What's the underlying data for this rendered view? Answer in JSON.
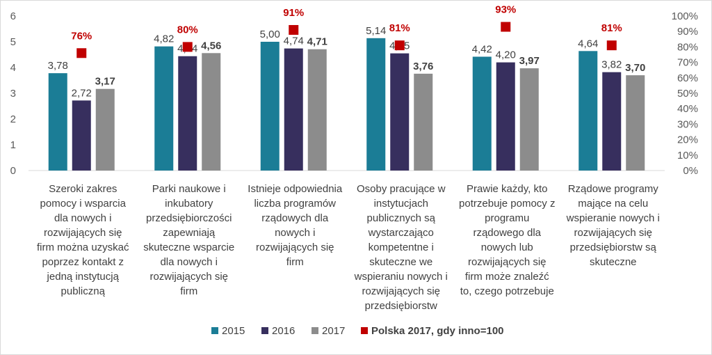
{
  "chart_data": {
    "type": "bar",
    "categories": [
      [
        "Szeroki zakres",
        "pomocy i wsparcia",
        "dla nowych i",
        "rozwijających się",
        "firm można uzyskać",
        "poprzez kontakt z",
        "jedną instytucją",
        "publiczną"
      ],
      [
        "Parki naukowe i",
        "inkubatory",
        "przedsiębiorczości",
        "zapewniają",
        "skuteczne wsparcie",
        "dla nowych i",
        "rozwijających się",
        "firm"
      ],
      [
        "Istnieje odpowiednia",
        "liczba programów",
        "rządowych dla",
        "nowych i",
        "rozwijających się",
        "firm"
      ],
      [
        "Osoby pracujące w",
        "instytucjach",
        "publicznych są",
        "wystarczająco",
        "kompetentne i",
        "skuteczne we",
        "wspieraniu nowych i",
        "rozwijających się",
        "przedsiębiorstw"
      ],
      [
        "Prawie każdy, kto",
        "potrzebuje pomocy z",
        "programu",
        "rządowego dla",
        "nowych lub",
        "rozwijających się",
        "firm może znaleźć",
        "to, czego potrzebuje"
      ],
      [
        "Rządowe programy",
        "mające na celu",
        "wspieranie nowych i",
        "rozwijających się",
        "przedsiębiorstw są",
        "skuteczne"
      ]
    ],
    "series": [
      {
        "name": "2015",
        "color": "#1b7d96",
        "values": [
          3.78,
          4.82,
          5.0,
          5.14,
          4.42,
          4.64
        ],
        "labels": [
          "3,78",
          "4,82",
          "5,00",
          "5,14",
          "4,42",
          "4,64"
        ],
        "bold": false
      },
      {
        "name": "2016",
        "color": "#372f5e",
        "values": [
          2.72,
          4.44,
          4.74,
          4.55,
          4.2,
          3.82
        ],
        "labels": [
          "2,72",
          "4,44",
          "4,74",
          "4,55",
          "4,20",
          "3,82"
        ],
        "bold": false
      },
      {
        "name": "2017",
        "color": "#8c8c8c",
        "values": [
          3.17,
          4.56,
          4.71,
          3.76,
          3.97,
          3.7
        ],
        "labels": [
          "3,17",
          "4,56",
          "4,71",
          "3,76",
          "3,97",
          "3,70"
        ],
        "bold": true
      }
    ],
    "secondary_series": {
      "name": "Polska 2017, gdy inno=100",
      "color": "#c00000",
      "values": [
        76,
        80,
        91,
        81,
        93,
        81
      ],
      "labels": [
        "76%",
        "80%",
        "91%",
        "81%",
        "93%",
        "81%"
      ]
    },
    "y_axis": {
      "min": 0,
      "max": 6,
      "ticks": [
        "0",
        "1",
        "2",
        "3",
        "4",
        "5",
        "6"
      ]
    },
    "y2_axis": {
      "min": 0,
      "max": 100,
      "ticks": [
        "0%",
        "10%",
        "20%",
        "30%",
        "40%",
        "50%",
        "60%",
        "70%",
        "80%",
        "90%",
        "100%"
      ]
    },
    "legend": {
      "position": "bottom",
      "items": [
        "2015",
        "2016",
        "2017",
        "Polska 2017, gdy inno=100"
      ]
    }
  }
}
